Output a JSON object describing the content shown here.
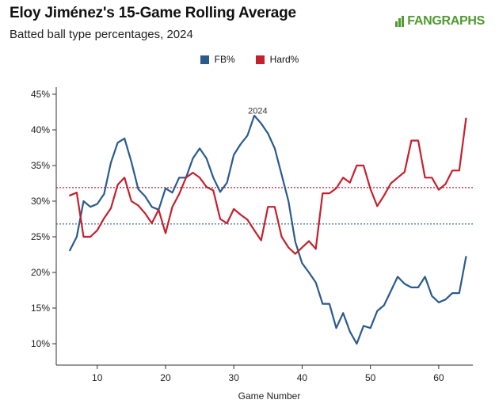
{
  "header": {
    "title": "Eloy Jiménez's 15-Game Rolling Average",
    "subtitle": "Batted ball type percentages, 2024",
    "logo_text": "FANGRAPHS",
    "logo_icon": "fangraphs-bars-icon"
  },
  "chart_data": {
    "type": "line",
    "title": "Eloy Jiménez's 15-Game Rolling Average",
    "subtitle": "Batted ball type percentages, 2024",
    "xlabel": "Game Number",
    "ylabel": "",
    "xlim": [
      4,
      65
    ],
    "ylim": [
      7,
      46
    ],
    "x_ticks": [
      10,
      20,
      30,
      40,
      50,
      60
    ],
    "x_tick_labels": [
      "10",
      "20",
      "30",
      "40",
      "50",
      "60"
    ],
    "y_ticks": [
      10,
      15,
      20,
      25,
      30,
      35,
      40,
      45
    ],
    "y_tick_labels": [
      "10%",
      "15%",
      "20%",
      "25%",
      "30%",
      "35%",
      "40%",
      "45%"
    ],
    "grid": false,
    "legend_position": "top-center",
    "annotation": "2024",
    "annotation_at": [
      33.5,
      42.3
    ],
    "series": [
      {
        "name": "FB%",
        "color": "#2a5a8c",
        "x": [
          6,
          7,
          8,
          9,
          10,
          11,
          12,
          13,
          14,
          15,
          16,
          17,
          18,
          19,
          20,
          21,
          22,
          23,
          24,
          25,
          26,
          27,
          28,
          29,
          30,
          31,
          32,
          33,
          34,
          35,
          36,
          37,
          38,
          39,
          40,
          41,
          42,
          43,
          44,
          45,
          46,
          47,
          48,
          49,
          50,
          51,
          52,
          53,
          54,
          55,
          56,
          57,
          58,
          59,
          60,
          61,
          62,
          63,
          64
        ],
        "values": [
          23.1,
          25.0,
          30.0,
          29.2,
          29.6,
          31.0,
          35.4,
          38.2,
          38.8,
          35.5,
          31.7,
          30.7,
          29.2,
          28.8,
          31.8,
          31.2,
          33.3,
          33.3,
          36.0,
          37.4,
          36.0,
          33.3,
          31.3,
          32.6,
          36.5,
          38.0,
          39.2,
          42.0,
          40.9,
          39.5,
          37.4,
          33.7,
          30.0,
          24.3,
          21.3,
          20.0,
          18.6,
          15.6,
          15.6,
          12.2,
          14.3,
          11.7,
          10.0,
          12.5,
          12.2,
          14.6,
          15.4,
          17.4,
          19.4,
          18.4,
          17.9,
          17.9,
          19.4,
          16.7,
          15.8,
          16.2,
          17.1,
          17.1,
          22.2
        ],
        "reference_value": 26.8
      },
      {
        "name": "Hard%",
        "color": "#c4202e",
        "x": [
          6,
          7,
          8,
          9,
          10,
          11,
          12,
          13,
          14,
          15,
          16,
          17,
          18,
          19,
          20,
          21,
          22,
          23,
          24,
          25,
          26,
          27,
          28,
          29,
          30,
          31,
          32,
          33,
          34,
          35,
          36,
          37,
          38,
          39,
          40,
          41,
          42,
          43,
          44,
          45,
          46,
          47,
          48,
          49,
          50,
          51,
          52,
          53,
          54,
          55,
          56,
          57,
          58,
          59,
          60,
          61,
          62,
          63,
          64
        ],
        "values": [
          30.8,
          31.2,
          25.0,
          25.0,
          25.9,
          27.6,
          29.0,
          32.3,
          33.3,
          30.0,
          29.4,
          28.3,
          26.9,
          28.8,
          25.5,
          29.2,
          31.0,
          33.3,
          34.0,
          33.3,
          32.0,
          31.5,
          27.5,
          26.9,
          28.9,
          28.1,
          27.4,
          25.9,
          24.5,
          29.2,
          29.2,
          25.0,
          23.5,
          22.6,
          23.5,
          24.4,
          23.3,
          31.1,
          31.1,
          31.8,
          33.3,
          32.6,
          35.0,
          35.0,
          31.7,
          29.3,
          30.8,
          32.5,
          33.3,
          34.1,
          38.5,
          38.5,
          33.3,
          33.3,
          31.6,
          32.4,
          34.3,
          34.3,
          41.6
        ],
        "reference_value": 31.9
      }
    ]
  }
}
